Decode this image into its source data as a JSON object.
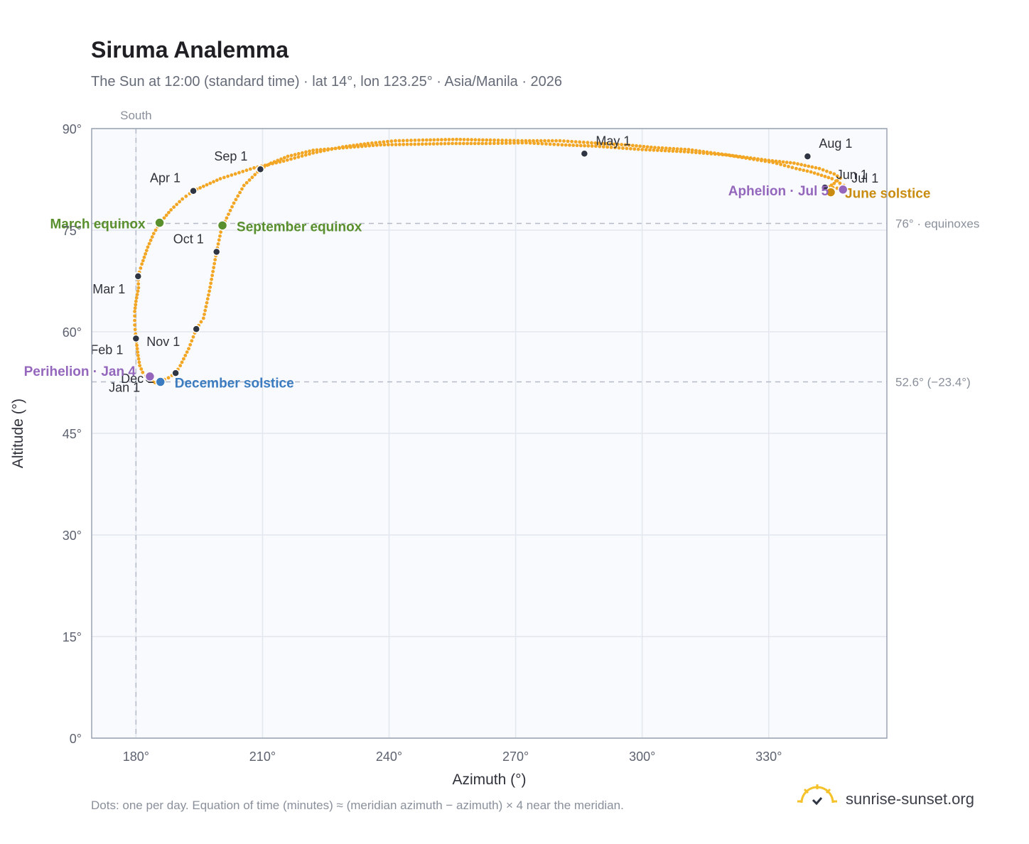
{
  "header": {
    "title": "Siruma Analemma",
    "subtitle": "The Sun at 12:00 (standard time) · lat 14°, lon 123.25° · Asia/Manila · 2026"
  },
  "footer": {
    "note": "Dots: one per day. Equation of time (minutes) ≈ (meridian azimuth − azimuth) × 4 near the meridian."
  },
  "brand": {
    "name": "sunrise-sunset.org",
    "icon": "sun-logo-icon"
  },
  "colors": {
    "curve": "#f2a623",
    "month_marker": "#2f3542",
    "equinox": "#5a8f2e",
    "december_solstice": "#3b7bbf",
    "june_solstice": "#c98c10",
    "apsis": "#9467bd",
    "grid": "#e3e7ee",
    "plot_bg": "#f8fafd",
    "frame": "#9aa3b2"
  },
  "chart_data": {
    "type": "scatter",
    "title": "Siruma Analemma",
    "xlabel": "Azimuth (°)",
    "ylabel": "Altitude (°)",
    "xlim": [
      169.5,
      358
    ],
    "ylim": [
      0,
      90
    ],
    "x_ticks": [
      180,
      210,
      240,
      270,
      300,
      330
    ],
    "x_tick_labels": [
      "180°",
      "210°",
      "240°",
      "270°",
      "300°",
      "330°"
    ],
    "y_ticks": [
      0,
      15,
      30,
      45,
      60,
      75,
      90
    ],
    "y_tick_labels": [
      "0°",
      "15°",
      "30°",
      "45°",
      "60°",
      "75°",
      "90°"
    ],
    "grid": true,
    "meridian": {
      "azimuth": 180,
      "label": "South"
    },
    "reference_lines": [
      {
        "altitude": 76,
        "label": "76° · equinoxes"
      },
      {
        "altitude": 52.6,
        "label": "52.6° (−23.4°)"
      }
    ],
    "daily_path": [
      {
        "name": "jan-feb",
        "points": [
          [
            183.2,
            53.0
          ],
          [
            181.6,
            54.0
          ],
          [
            180.9,
            55.0
          ],
          [
            180.5,
            56.5
          ],
          [
            180.2,
            58.0
          ],
          [
            180.0,
            59.0
          ]
        ]
      },
      {
        "name": "feb-mar",
        "points": [
          [
            180.0,
            59.0
          ],
          [
            179.7,
            61.0
          ],
          [
            179.7,
            63.0
          ],
          [
            180.0,
            64.5
          ],
          [
            180.6,
            66.5
          ],
          [
            180.5,
            68.2
          ]
        ]
      },
      {
        "name": "mar-apr",
        "points": [
          [
            180.5,
            68.2
          ],
          [
            181.4,
            70.0
          ],
          [
            182.8,
            72.5
          ],
          [
            184.2,
            74.5
          ],
          [
            185.6,
            76.0
          ],
          [
            188.3,
            78.0
          ],
          [
            191.0,
            79.6
          ],
          [
            193.6,
            80.8
          ]
        ]
      },
      {
        "name": "apr-may",
        "points": [
          [
            193.6,
            80.8
          ],
          [
            200.0,
            82.6
          ],
          [
            208.0,
            84.2
          ],
          [
            215.0,
            85.2
          ],
          [
            222.0,
            86.4
          ],
          [
            229.0,
            87.3
          ],
          [
            235.0,
            87.8
          ],
          [
            241.5,
            88.2
          ],
          [
            248.0,
            88.3
          ],
          [
            256.0,
            88.4
          ],
          [
            264.0,
            88.3
          ],
          [
            271.5,
            88.2
          ],
          [
            280.5,
            88.2
          ],
          [
            288.0,
            87.9
          ],
          [
            296.0,
            87.6
          ],
          [
            303.0,
            87.2
          ],
          [
            311.0,
            86.9
          ],
          [
            318.0,
            86.3
          ],
          [
            324.0,
            85.8
          ],
          [
            330.0,
            85.3
          ],
          [
            336.0,
            84.9
          ],
          [
            342.0,
            84.1
          ],
          [
            345.5,
            83.3
          ],
          [
            347.0,
            82.7
          ]
        ]
      },
      {
        "name": "may-jun",
        "points": [
          [
            347.0,
            82.7
          ],
          [
            345.5,
            81.9
          ],
          [
            344.2,
            81.4
          ]
        ]
      },
      {
        "name": "jun-jul",
        "points": [
          [
            344.2,
            81.4
          ],
          [
            346.2,
            81.2
          ],
          [
            347.8,
            81.6
          ]
        ]
      },
      {
        "name": "jul-aug",
        "points": [
          [
            347.8,
            81.6
          ],
          [
            345.0,
            82.6
          ],
          [
            340.0,
            83.6
          ],
          [
            336.5,
            84.1
          ]
        ]
      },
      {
        "name": "aug-sep",
        "points": [
          [
            336.5,
            84.1
          ],
          [
            331.0,
            85.0
          ],
          [
            320.0,
            86.1
          ],
          [
            310.0,
            86.6
          ],
          [
            300.0,
            86.9
          ],
          [
            289.0,
            87.4
          ],
          [
            281.0,
            87.6
          ],
          [
            272.5,
            87.9
          ],
          [
            263.0,
            87.8
          ],
          [
            255.0,
            87.8
          ],
          [
            247.0,
            87.7
          ],
          [
            238.0,
            87.6
          ],
          [
            230.0,
            87.2
          ],
          [
            222.0,
            86.8
          ],
          [
            216.0,
            85.9
          ],
          [
            212.0,
            84.9
          ],
          [
            209.5,
            84.0
          ]
        ]
      },
      {
        "name": "sep-oct",
        "points": [
          [
            209.5,
            84.0
          ],
          [
            205.6,
            81.6
          ],
          [
            203.2,
            79.0
          ],
          [
            201.5,
            76.8
          ],
          [
            200.3,
            75.3
          ],
          [
            199.1,
            71.8
          ]
        ]
      },
      {
        "name": "oct-nov",
        "points": [
          [
            199.1,
            71.8
          ],
          [
            197.4,
            66.0
          ],
          [
            196.0,
            62.0
          ],
          [
            194.3,
            60.4
          ]
        ]
      },
      {
        "name": "nov-dec",
        "points": [
          [
            194.3,
            60.4
          ],
          [
            192.5,
            57.5
          ],
          [
            190.5,
            55.0
          ],
          [
            189.4,
            53.9
          ]
        ]
      },
      {
        "name": "dec-jan",
        "points": [
          [
            189.4,
            53.9
          ],
          [
            187.7,
            53.2
          ],
          [
            185.8,
            52.7
          ],
          [
            184.5,
            52.5
          ],
          [
            183.2,
            53.0
          ]
        ]
      }
    ],
    "month_markers": [
      {
        "label": "Jan 1",
        "azimuth": 183.0,
        "altitude": 53.0
      },
      {
        "label": "Feb 1",
        "azimuth": 180.0,
        "altitude": 59.0
      },
      {
        "label": "Mar 1",
        "azimuth": 180.5,
        "altitude": 68.2
      },
      {
        "label": "Apr 1",
        "azimuth": 193.6,
        "altitude": 80.8
      },
      {
        "label": "May 1",
        "azimuth": 286.3,
        "altitude": 86.3
      },
      {
        "label": "Jun 1",
        "azimuth": 343.3,
        "altitude": 81.3
      },
      {
        "label": "Jul 1",
        "azimuth": 347.6,
        "altitude": 81.0
      },
      {
        "label": "Aug 1",
        "azimuth": 339.2,
        "altitude": 85.9
      },
      {
        "label": "Sep 1",
        "azimuth": 209.5,
        "altitude": 84.0
      },
      {
        "label": "Oct 1",
        "azimuth": 199.1,
        "altitude": 71.8
      },
      {
        "label": "Nov 1",
        "azimuth": 194.3,
        "altitude": 60.4
      },
      {
        "label": "Dec 1",
        "azimuth": 189.4,
        "altitude": 53.9
      }
    ],
    "events": [
      {
        "label": "March equinox",
        "azimuth": 185.6,
        "altitude": 76.1,
        "color": "#5a8f2e"
      },
      {
        "label": "September equinox",
        "azimuth": 200.5,
        "altitude": 75.7,
        "color": "#5a8f2e"
      },
      {
        "label": "December solstice",
        "azimuth": 185.8,
        "altitude": 52.6,
        "color": "#3b7bbf"
      },
      {
        "label": "June solstice",
        "azimuth": 344.7,
        "altitude": 80.6,
        "color": "#c98c10"
      },
      {
        "label": "Perihelion · Jan 4",
        "azimuth": 183.3,
        "altitude": 53.4,
        "color": "#9467bd"
      },
      {
        "label": "Aphelion · Jul 5",
        "azimuth": 347.6,
        "altitude": 81.0,
        "color": "#9467bd"
      }
    ]
  }
}
